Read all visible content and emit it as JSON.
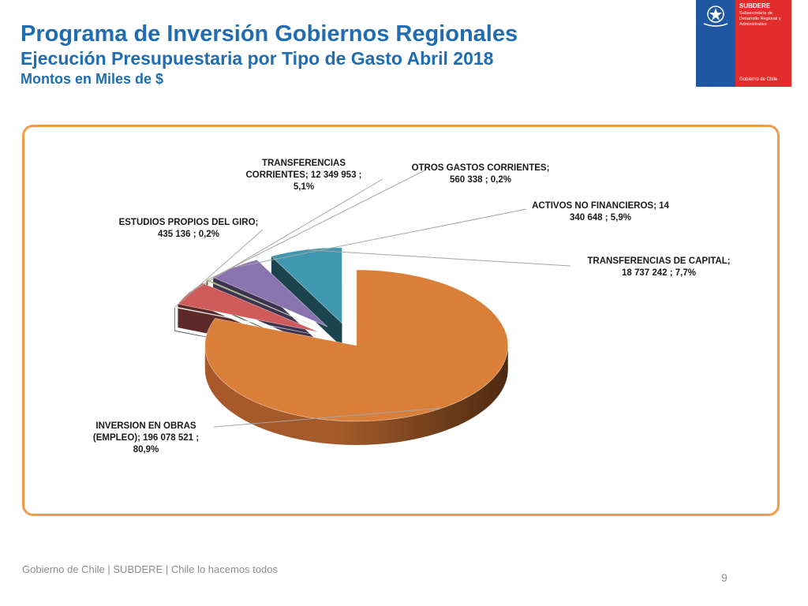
{
  "header": {
    "title": "Programa de Inversión Gobiernos Regionales",
    "subtitle": "Ejecución Presupuestaria por Tipo de Gasto Abril 2018",
    "units": "Montos en Miles de $"
  },
  "logo": {
    "brand": "SUBDERE",
    "subtitle": "Subsecretaría de Desarrollo Regional y Administrativo",
    "government": "Gobierno de Chile",
    "colors": {
      "blue": "#1f57a3",
      "red": "#e32d2d"
    }
  },
  "footer": {
    "text": "Gobierno de Chile | SUBDERE | Chile lo hacemos todos",
    "page_number": "9"
  },
  "chart_data": {
    "type": "pie",
    "subtype": "3d-exploded",
    "legend": "none",
    "slices": [
      {
        "category": "INVERSION EN OBRAS (EMPLEO)",
        "value": 196078521,
        "percent": 80.9,
        "label_lines": [
          "INVERSION EN OBRAS",
          "(EMPLEO);  196 078 521 ;",
          "80,9%"
        ],
        "color": "#d97f3a"
      },
      {
        "category": "ESTUDIOS PROPIOS DEL GIRO",
        "value": 435136,
        "percent": 0.2,
        "label_lines": [
          "ESTUDIOS PROPIOS DEL GIRO;",
          "435 136 ; 0,2%"
        ],
        "color": "#e8ecef"
      },
      {
        "category": "TRANSFERENCIAS CORRIENTES",
        "value": 12349953,
        "percent": 5.1,
        "label_lines": [
          "TRANSFERENCIAS",
          "CORRIENTES;  12 349 953 ;",
          "5,1%"
        ],
        "color": "#cf5c5a"
      },
      {
        "category": "OTROS GASTOS CORRIENTES",
        "value": 560338,
        "percent": 0.2,
        "label_lines": [
          "OTROS GASTOS CORRIENTES;",
          "560 338 ; 0,2%"
        ],
        "color": "#8fb056"
      },
      {
        "category": "ACTIVOS NO FINANCIEROS",
        "value": 14340648,
        "percent": 5.9,
        "label_lines": [
          "ACTIVOS NO FINANCIEROS;  14",
          "340 648 ; 5,9%"
        ],
        "color": "#8a74b0"
      },
      {
        "category": "TRANSFERENCIAS DE CAPITAL",
        "value": 18737242,
        "percent": 7.7,
        "label_lines": [
          "TRANSFERENCIAS DE CAPITAL;",
          "18 737 242 ; 7,7%"
        ],
        "color": "#3f98b0"
      }
    ]
  }
}
